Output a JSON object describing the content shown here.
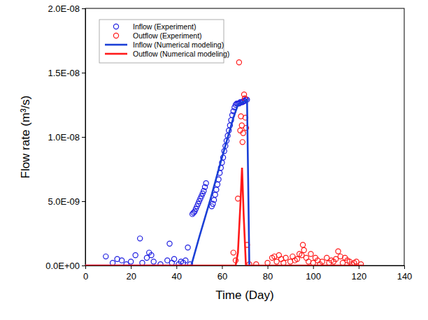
{
  "chart_data": {
    "type": "line",
    "xlabel": "Time (Day)",
    "ylabel": "Flow rate (m³/s)",
    "xlim": [
      0,
      140
    ],
    "xticks": [
      0,
      20,
      40,
      60,
      80,
      100,
      120,
      140
    ],
    "ylim": [
      0,
      2e-08
    ],
    "yticks": [
      {
        "value": 0,
        "label": "0.0E+00"
      },
      {
        "value": 5e-09,
        "label": "5.0E-09"
      },
      {
        "value": 1e-08,
        "label": "1.0E-08"
      },
      {
        "value": 1.5e-08,
        "label": "1.5E-08"
      },
      {
        "value": 2e-08,
        "label": "2.0E-08"
      }
    ],
    "grid": false,
    "legend": "upper left",
    "series": [
      {
        "name": "Inflow (Experiment)",
        "type": "scatter",
        "marker": "circle",
        "color": "#1f1fe0",
        "x": [
          9,
          12,
          14,
          16,
          18,
          20,
          22,
          24,
          25,
          27,
          28,
          29,
          30,
          33,
          36,
          37,
          38,
          39,
          41,
          42,
          43,
          44,
          45,
          46,
          47,
          47.5,
          48,
          48.5,
          49,
          49.5,
          50,
          50.5,
          51,
          51.5,
          52,
          52.5,
          53,
          55.5,
          56,
          56.5,
          57,
          57.5,
          58,
          58.5,
          59,
          59.5,
          60,
          60.5,
          61,
          61.5,
          62,
          62.5,
          63,
          63.5,
          64,
          64.5,
          65,
          65.5,
          66,
          66.5,
          67,
          67.5,
          68,
          68.5,
          69,
          69.5,
          70,
          70.5,
          71
        ],
        "values": [
          7e-10,
          2e-10,
          5e-10,
          4e-10,
          1e-10,
          3e-10,
          8e-10,
          2.1e-09,
          2e-10,
          6e-10,
          1e-09,
          8e-10,
          3e-10,
          1e-10,
          4e-10,
          1.7e-09,
          2e-10,
          5e-10,
          1e-10,
          3e-10,
          2e-10,
          4e-10,
          1.4e-09,
          1e-10,
          4e-09,
          4.1e-09,
          4.2e-09,
          4.4e-09,
          4.6e-09,
          4.8e-09,
          5e-09,
          5.2e-09,
          5.4e-09,
          5.6e-09,
          5.8e-09,
          6.1e-09,
          6.4e-09,
          4.6e-09,
          4.8e-09,
          5.1e-09,
          5.5e-09,
          5.9e-09,
          6.3e-09,
          6.7e-09,
          7.2e-09,
          7.6e-09,
          8e-09,
          8.4e-09,
          8.9e-09,
          9.3e-09,
          9.7e-09,
          1.01e-08,
          1.05e-08,
          1.09e-08,
          1.13e-08,
          1.17e-08,
          1.2e-08,
          1.23e-08,
          1.25e-08,
          1.26e-08,
          1.26e-08,
          1.26e-08,
          1.27e-08,
          1.27e-08,
          1.27e-08,
          1.28e-08,
          1.28e-08,
          1.29e-08,
          1.29e-08
        ]
      },
      {
        "name": "Outflow (Experiment)",
        "type": "scatter",
        "marker": "circle",
        "color": "#ff1a1a",
        "x": [
          65,
          66,
          67,
          67.5,
          68,
          68.3,
          68.7,
          69,
          69.3,
          69.7,
          70,
          70.3,
          70.6,
          71,
          72,
          75,
          80,
          82,
          83,
          84,
          85,
          86,
          87,
          88,
          90,
          91,
          92,
          93,
          94,
          95,
          95.5,
          96,
          97,
          98,
          99,
          100,
          101,
          102,
          103,
          104,
          106,
          107,
          108,
          109,
          110,
          111,
          112,
          113,
          114,
          115,
          116,
          117,
          118,
          119,
          121
        ],
        "values": [
          1e-09,
          4e-10,
          5.2e-09,
          1.58e-08,
          1.05e-08,
          1.16e-08,
          1.09e-08,
          9.6e-09,
          1.03e-08,
          1.33e-08,
          1.3e-08,
          1.15e-08,
          1.07e-08,
          1.6e-09,
          1e-10,
          1e-10,
          2e-10,
          6e-10,
          7e-10,
          3e-10,
          8e-10,
          5e-10,
          2e-10,
          6e-10,
          3e-10,
          7e-10,
          4e-10,
          5e-10,
          9e-10,
          8e-10,
          1.6e-09,
          1.2e-09,
          6e-10,
          3e-10,
          9e-10,
          2e-10,
          6e-10,
          4e-10,
          1e-10,
          3e-10,
          6e-10,
          2e-10,
          4e-10,
          3e-10,
          5e-10,
          1.1e-09,
          7e-10,
          2e-10,
          6e-10,
          4e-10,
          3e-10,
          1e-10,
          2e-10,
          3e-10,
          1e-10
        ]
      },
      {
        "name": "Inflow (Numerical modeling)",
        "type": "line",
        "line_style": "solid",
        "color": "#1a3fd6",
        "x": [
          0,
          46.5,
          50,
          55,
          60,
          65,
          67,
          69,
          71,
          72
        ],
        "values": [
          0,
          0,
          2.2e-09,
          5.2e-09,
          8.4e-09,
          1.15e-08,
          1.25e-08,
          1.27e-08,
          1.29e-08,
          0
        ]
      },
      {
        "name": "Outflow (Numerical modeling)",
        "type": "line",
        "line_style": "solid",
        "color": "#ff1a1a",
        "x": [
          0,
          66,
          67,
          68,
          68.8,
          69.5,
          70.5,
          122
        ],
        "values": [
          0,
          0,
          1e-09,
          4.5e-09,
          7.6e-09,
          4e-09,
          0,
          0
        ]
      }
    ]
  }
}
